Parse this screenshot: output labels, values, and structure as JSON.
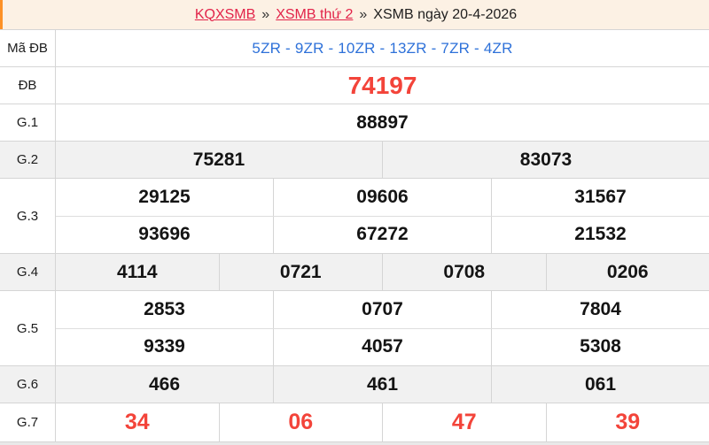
{
  "colors": {
    "accent_orange": "#fd9126",
    "header_bg": "#fcf1e4",
    "link_red": "#e22349",
    "special_red": "#f3443a",
    "code_blue": "#2e71d9",
    "alt_row_bg": "#f1f1f1",
    "border": "#d5d5d5"
  },
  "breadcrumb": {
    "link1": "KQXSMB",
    "separator": "»",
    "link2": "XSMB thứ 2",
    "current": "XSMB ngày 20-4-2026"
  },
  "table": {
    "rows": [
      {
        "label": "Mã ĐB",
        "type": "code",
        "cells": [
          [
            "5ZR - 9ZR - 10ZR - 13ZR - 7ZR - 4ZR"
          ]
        ]
      },
      {
        "label": "ĐB",
        "type": "special",
        "cells": [
          [
            "74197"
          ]
        ]
      },
      {
        "label": "G.1",
        "type": "normal",
        "cells": [
          [
            "88897"
          ]
        ]
      },
      {
        "label": "G.2",
        "type": "normal",
        "alt": true,
        "cells": [
          [
            "75281",
            "83073"
          ]
        ]
      },
      {
        "label": "G.3",
        "type": "normal",
        "cells": [
          [
            "29125",
            "09606",
            "31567"
          ],
          [
            "93696",
            "67272",
            "21532"
          ]
        ]
      },
      {
        "label": "G.4",
        "type": "normal",
        "alt": true,
        "cells": [
          [
            "4114",
            "0721",
            "0708",
            "0206"
          ]
        ]
      },
      {
        "label": "G.5",
        "type": "normal",
        "cells": [
          [
            "2853",
            "0707",
            "7804"
          ],
          [
            "9339",
            "4057",
            "5308"
          ]
        ]
      },
      {
        "label": "G.6",
        "type": "normal",
        "alt": true,
        "cells": [
          [
            "466",
            "461",
            "061"
          ]
        ]
      },
      {
        "label": "G.7",
        "type": "red",
        "cells": [
          [
            "34",
            "06",
            "47",
            "39"
          ]
        ]
      }
    ]
  }
}
